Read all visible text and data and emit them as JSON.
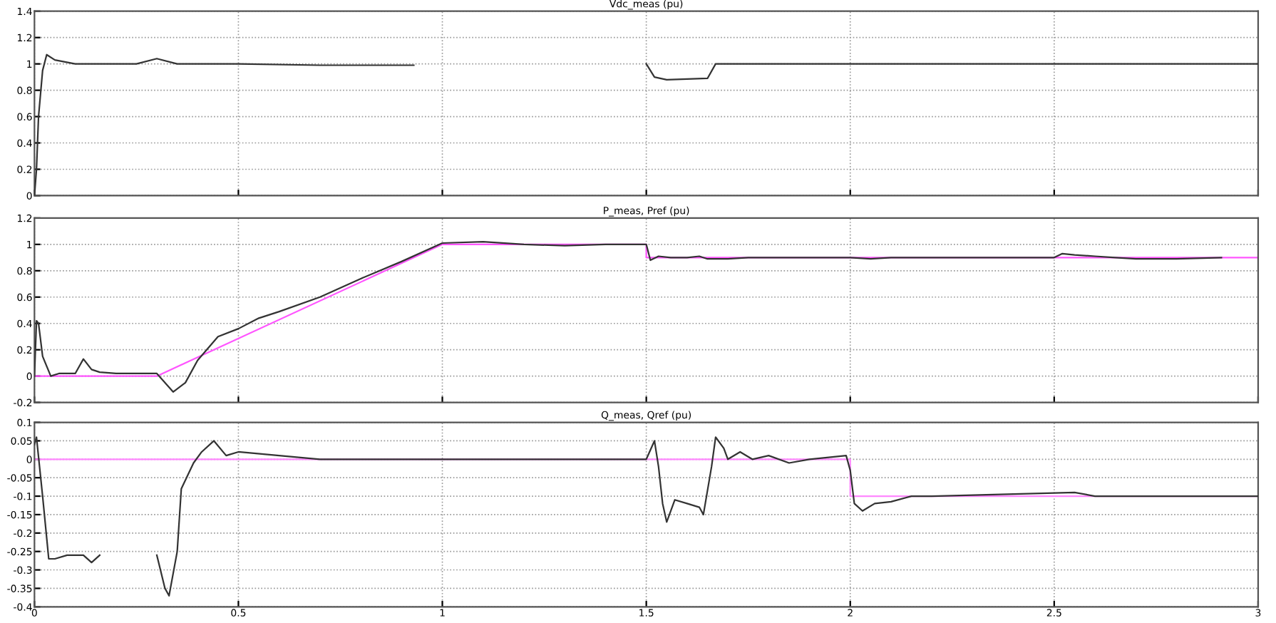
{
  "chart_data": [
    {
      "type": "line",
      "title": "Vdc_meas (pu)",
      "xlim": [
        0,
        3
      ],
      "xticks": [
        0,
        0.5,
        1,
        1.5,
        2,
        2.5,
        3
      ],
      "ylim": [
        0,
        1.4
      ],
      "yticks": [
        0,
        0.2,
        0.4,
        0.6,
        0.8,
        1,
        1.2,
        1.4
      ],
      "grid": true,
      "tick_labels": "y",
      "series": [
        {
          "color": "#333333",
          "x": [
            0,
            0.005,
            0.01,
            0.02,
            0.03,
            0.05,
            0.1,
            0.15,
            0.25,
            0.3,
            0.35,
            0.5,
            0.7,
            0.93,
            0.94,
            1.49,
            1.5,
            1.52,
            1.55,
            1.65,
            1.67,
            1.8,
            2.0,
            2.5,
            3.0
          ],
          "values": [
            0,
            0.2,
            0.6,
            0.95,
            1.07,
            1.03,
            1.0,
            1.0,
            1.0,
            1.04,
            1.0,
            1.0,
            0.99,
            0.99,
            null,
            null,
            1.0,
            0.9,
            0.88,
            0.89,
            1.0,
            1.0,
            1.0,
            1.0,
            1.0
          ]
        }
      ]
    },
    {
      "type": "line",
      "title": "P_meas, Pref (pu)",
      "xlim": [
        0,
        3
      ],
      "xticks": [
        0,
        0.5,
        1,
        1.5,
        2,
        2.5,
        3
      ],
      "ylim": [
        -0.2,
        1.2
      ],
      "yticks": [
        -0.2,
        0,
        0.2,
        0.4,
        0.6,
        0.8,
        1,
        1.2
      ],
      "grid": true,
      "tick_labels": "y",
      "series": [
        {
          "color": "#333333",
          "x": [
            0,
            0.005,
            0.01,
            0.02,
            0.04,
            0.06,
            0.1,
            0.12,
            0.14,
            0.16,
            0.2,
            0.3,
            0.34,
            0.37,
            0.4,
            0.45,
            0.5,
            0.55,
            0.6,
            0.7,
            0.8,
            0.9,
            1.0,
            1.1,
            1.2,
            1.3,
            1.4,
            1.5,
            1.51,
            1.53,
            1.56,
            1.6,
            1.63,
            1.65,
            1.7,
            1.75,
            2.0,
            2.05,
            2.1,
            2.5,
            2.52,
            2.55,
            2.6,
            2.65,
            2.7,
            2.8,
            2.91
          ],
          "values": [
            0,
            0.42,
            0.4,
            0.15,
            0.0,
            0.02,
            0.02,
            0.13,
            0.05,
            0.03,
            0.02,
            0.02,
            -0.12,
            -0.05,
            0.12,
            0.3,
            0.36,
            0.44,
            0.49,
            0.6,
            0.74,
            0.87,
            1.01,
            1.02,
            1.0,
            0.99,
            1.0,
            1.0,
            0.88,
            0.91,
            0.9,
            0.9,
            0.91,
            0.89,
            0.89,
            0.9,
            0.9,
            0.89,
            0.9,
            0.9,
            0.93,
            0.92,
            0.91,
            0.9,
            0.89,
            0.89,
            0.9
          ]
        },
        {
          "color": "#ff55ff",
          "x": [
            0,
            0.3,
            1.0,
            1.5,
            1.5,
            3.0
          ],
          "values": [
            0,
            0,
            1.0,
            1.0,
            0.9,
            0.9
          ]
        }
      ]
    },
    {
      "type": "line",
      "title": "Q_meas, Qref (pu)",
      "xlim": [
        0,
        3
      ],
      "xticks": [
        0,
        0.5,
        1,
        1.5,
        2,
        2.5,
        3
      ],
      "ylim": [
        -0.4,
        0.1
      ],
      "yticks": [
        -0.4,
        -0.35,
        -0.3,
        -0.25,
        -0.2,
        -0.15,
        -0.1,
        -0.05,
        0,
        0.05,
        0.1
      ],
      "grid": true,
      "series": [
        {
          "color": "#ff88ff",
          "x": [
            0,
            2.0,
            2.0,
            3.0
          ],
          "values": [
            0,
            0,
            -0.1,
            -0.1
          ]
        },
        {
          "color": "#333333",
          "x": [
            0,
            0.005,
            0.02,
            0.035,
            0.05,
            0.08,
            0.1,
            0.12,
            0.14,
            0.16,
            0.17,
            0.29,
            0.3,
            0.32,
            0.33,
            0.35,
            0.36,
            0.39,
            0.41,
            0.44,
            0.47,
            0.5,
            0.6,
            0.7,
            1.0,
            1.5,
            1.52,
            1.53,
            1.54,
            1.55,
            1.57,
            1.6,
            1.63,
            1.64,
            1.66,
            1.67,
            1.69,
            1.7,
            1.73,
            1.76,
            1.8,
            1.85,
            1.9,
            1.99,
            2.0,
            2.01,
            2.03,
            2.06,
            2.1,
            2.15,
            2.2,
            2.55,
            2.6,
            3.0
          ],
          "values": [
            0.04,
            0.06,
            -0.1,
            -0.27,
            -0.27,
            -0.26,
            -0.26,
            -0.26,
            -0.28,
            -0.26,
            null,
            null,
            -0.26,
            -0.35,
            -0.37,
            -0.25,
            -0.08,
            -0.01,
            0.02,
            0.05,
            0.01,
            0.02,
            0.01,
            0.0,
            0.0,
            0.0,
            0.05,
            -0.02,
            -0.12,
            -0.17,
            -0.11,
            -0.12,
            -0.13,
            -0.15,
            -0.02,
            0.06,
            0.03,
            0.0,
            0.02,
            0.0,
            0.01,
            -0.01,
            0.0,
            0.01,
            -0.03,
            -0.12,
            -0.14,
            -0.12,
            -0.115,
            -0.1,
            -0.1,
            -0.09,
            -0.1,
            -0.1
          ]
        }
      ]
    }
  ]
}
